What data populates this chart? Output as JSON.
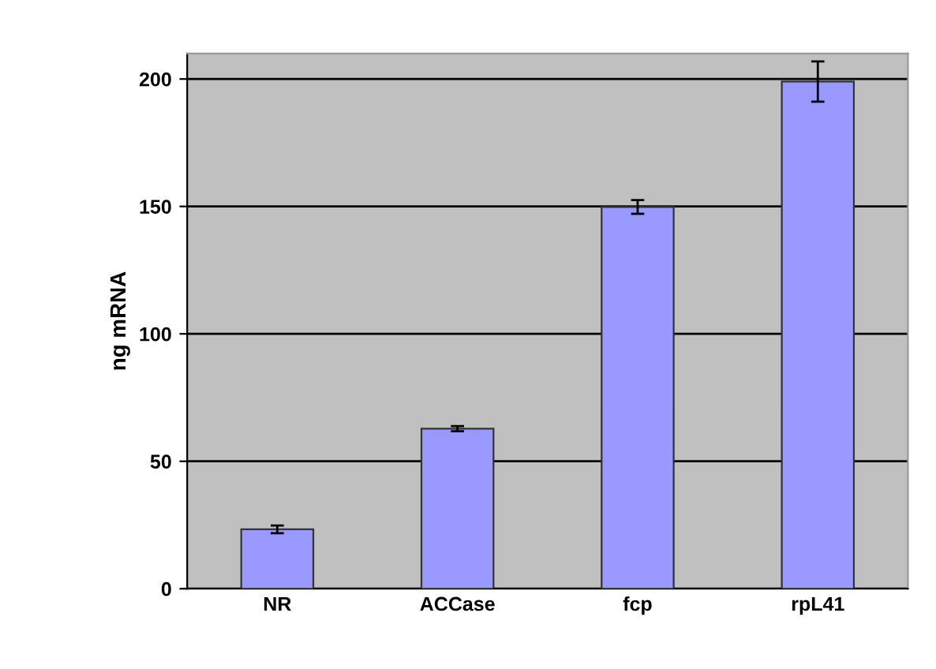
{
  "chart_data": {
    "type": "bar",
    "ylabel": "ng mRNA",
    "categories": [
      "NR",
      "ACCase",
      "fcp",
      "rpL41"
    ],
    "values": [
      23.3,
      62.8,
      149.8,
      199
    ],
    "errors": [
      1.5,
      1,
      2.7,
      7.9
    ],
    "color": "#9999ff",
    "ylim": [
      0,
      210
    ],
    "yticks": [
      0,
      50,
      100,
      150,
      200
    ],
    "grid": "y"
  }
}
